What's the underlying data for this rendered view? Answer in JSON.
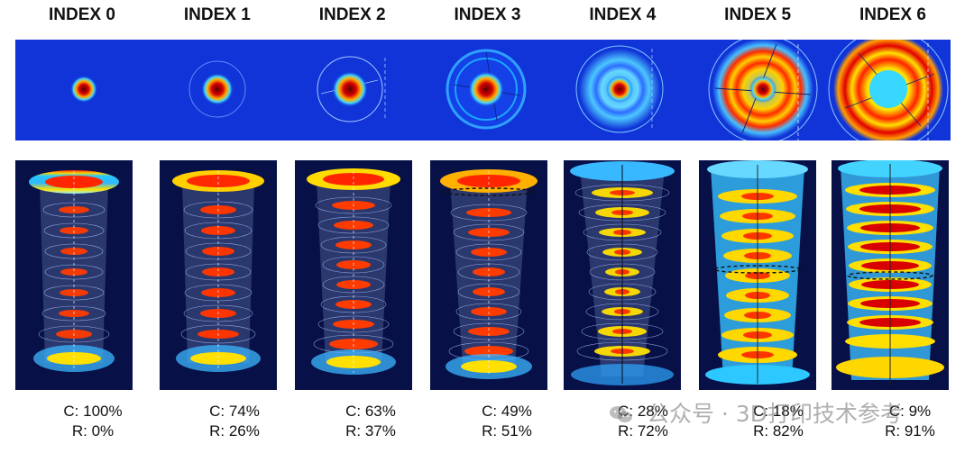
{
  "headers": [
    "INDEX 0",
    "INDEX 1",
    "INDEX 2",
    "INDEX 3",
    "INDEX 4",
    "INDEX 5",
    "INDEX 6"
  ],
  "captions": [
    {
      "c": "C: 100%",
      "r": "R: 0%",
      "c_value": 100,
      "r_value": 0
    },
    {
      "c": "C: 74%",
      "r": "R: 26%",
      "c_value": 74,
      "r_value": 26
    },
    {
      "c": "C: 63%",
      "r": "R: 37%",
      "c_value": 63,
      "r_value": 37
    },
    {
      "c": "C: 49%",
      "r": "R: 51%",
      "c_value": 49,
      "r_value": 51
    },
    {
      "c": "C: 28%",
      "r": "R: 72%",
      "c_value": 28,
      "r_value": 72
    },
    {
      "c": "C: 18%",
      "r": "R: 82%",
      "c_value": 18,
      "r_value": 82
    },
    {
      "c": "C: 9%",
      "r": "R: 91%",
      "c_value": 9,
      "r_value": 91
    }
  ],
  "watermark": {
    "text": "公众号 · 3D打印技术参考",
    "icon": "wechat-icon"
  },
  "colors": {
    "background_blue": "#1034d8",
    "column_bg": "#071047",
    "core_red": "#d70000",
    "ring_red": "#e00000",
    "ring_yellow": "#ffd400",
    "ring_cyan": "#35c6ff"
  }
}
